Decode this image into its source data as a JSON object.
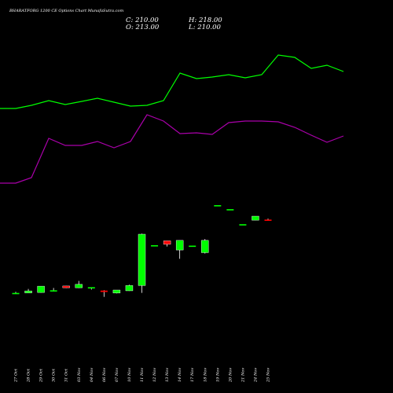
{
  "header": {
    "title": "BHARATFORG 1200  CE Options  Chart MunafaSutra.com",
    "close": "C: 210.00",
    "open": "O: 213.00",
    "high": "H: 218.00",
    "low": "L: 210.00"
  },
  "colors": {
    "background": "#000000",
    "bullish": "#00ff00",
    "bearish": "#ff0000",
    "upper_band": "#00ff00",
    "lower_band": "#aa00aa",
    "text": "#ffffff"
  },
  "chart_data": {
    "type": "candlestick",
    "categories": [
      "27 Oct",
      "28 Oct",
      "29 Oct",
      "30 Oct",
      "31 Oct",
      "03 Nov",
      "04 Nov",
      "06 Nov",
      "07 Nov",
      "10 Nov",
      "11 Nov",
      "12 Nov",
      "13 Nov",
      "14 Nov",
      "17 Nov",
      "18 Nov",
      "19 Nov",
      "20 Nov",
      "21 Nov",
      "24 Nov",
      "25 Nov"
    ],
    "candles": [
      {
        "o": 10.4,
        "h": 12.2,
        "l": 10.0,
        "c": 10.4
      },
      {
        "o": 10.4,
        "h": 16.7,
        "l": 10.4,
        "c": 13.6
      },
      {
        "o": 11.1,
        "h": 21.6,
        "l": 10.7,
        "c": 21.6
      },
      {
        "o": 14.6,
        "h": 18.3,
        "l": 13.6,
        "c": 14.6
      },
      {
        "o": 22.0,
        "h": 22.3,
        "l": 18.1,
        "c": 18.6
      },
      {
        "o": 18.6,
        "h": 33.6,
        "l": 18.1,
        "c": 25.9
      },
      {
        "o": 19.5,
        "h": 19.5,
        "l": 15.7,
        "c": 19.5
      },
      {
        "o": 14.1,
        "h": 14.8,
        "l": 4.8,
        "c": 11.9
      },
      {
        "o": 10.2,
        "h": 15.0,
        "l": 9.7,
        "c": 15.0
      },
      {
        "o": 13.8,
        "h": 24.9,
        "l": 13.6,
        "c": 23.3
      },
      {
        "o": 23.0,
        "h": 143.0,
        "l": 10.4,
        "c": 140.0
      },
      {
        "o": 115.0,
        "h": 115.0,
        "l": 115.0,
        "c": 115.0
      },
      {
        "o": 125.0,
        "h": 125.0,
        "l": 112.0,
        "c": 117.0
      },
      {
        "o": 104.0,
        "h": 126.0,
        "l": 84.0,
        "c": 126.0
      },
      {
        "o": 114.0,
        "h": 114.0,
        "l": 114.0,
        "c": 114.0
      },
      {
        "o": 98.0,
        "h": 129.0,
        "l": 96.0,
        "c": 126.0
      },
      {
        "o": 285.0,
        "h": 285.0,
        "l": 285.0,
        "c": 285.0
      },
      {
        "o": 265.0,
        "h": 265.0,
        "l": 265.0,
        "c": 265.0
      },
      {
        "o": 190.0,
        "h": 190.0,
        "l": 190.0,
        "c": 190.0
      },
      {
        "o": 210.0,
        "h": 230.0,
        "l": 210.0,
        "c": 230.0
      },
      {
        "o": 213.0,
        "h": 218.0,
        "l": 210.0,
        "c": 210.0
      }
    ],
    "overlays": [
      {
        "name": "",
        "color": "#00ff00",
        "points": [
          [
            0,
            138
          ],
          [
            20,
            138
          ],
          [
            40,
            134
          ],
          [
            62,
            128
          ],
          [
            83,
            133
          ],
          [
            104,
            129
          ],
          [
            124,
            125
          ],
          [
            145,
            130
          ],
          [
            166,
            135
          ],
          [
            187,
            134
          ],
          [
            208,
            128
          ],
          [
            229,
            93
          ],
          [
            250,
            100
          ],
          [
            270,
            98
          ],
          [
            291,
            95
          ],
          [
            312,
            99
          ],
          [
            333,
            95
          ],
          [
            354,
            70
          ],
          [
            375,
            73
          ],
          [
            396,
            87
          ],
          [
            416,
            83
          ],
          [
            437,
            91
          ]
        ]
      },
      {
        "name": "",
        "color": "#aa00aa",
        "points": [
          [
            0,
            233
          ],
          [
            20,
            233
          ],
          [
            40,
            226
          ],
          [
            62,
            176
          ],
          [
            83,
            185
          ],
          [
            104,
            185
          ],
          [
            124,
            180
          ],
          [
            145,
            188
          ],
          [
            166,
            180
          ],
          [
            187,
            146
          ],
          [
            208,
            154
          ],
          [
            229,
            170
          ],
          [
            250,
            169
          ],
          [
            270,
            171
          ],
          [
            291,
            156
          ],
          [
            312,
            154
          ],
          [
            333,
            154
          ],
          [
            354,
            155
          ],
          [
            375,
            162
          ],
          [
            396,
            172
          ],
          [
            416,
            181
          ],
          [
            437,
            173
          ]
        ]
      }
    ]
  }
}
